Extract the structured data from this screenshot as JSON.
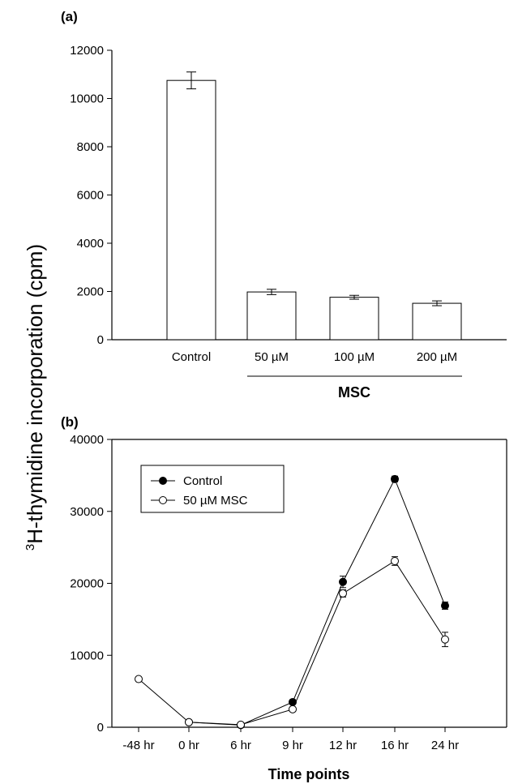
{
  "ylabel_main": "H-thymidine incorporation (cpm)",
  "ylabel_superscript": "3",
  "chart_data": [
    {
      "type": "bar",
      "panel_label": "(a)",
      "categories": [
        "Control",
        "50 µM",
        "100 µM",
        "200 µM"
      ],
      "values": [
        10750,
        1980,
        1760,
        1510
      ],
      "errors": [
        350,
        110,
        80,
        100
      ],
      "ylim": [
        0,
        12000
      ],
      "yticks": [
        0,
        2000,
        4000,
        6000,
        8000,
        10000,
        12000
      ],
      "group_label": "MSC",
      "bar_color": "#ffffff"
    },
    {
      "type": "line",
      "panel_label": "(b)",
      "x": [
        "-48 hr",
        "0 hr",
        "6 hr",
        "9 hr",
        "12 hr",
        "16 hr",
        "24 hr"
      ],
      "xlabel": "Time points",
      "ylim": [
        0,
        40000
      ],
      "yticks": [
        0,
        10000,
        20000,
        30000,
        40000
      ],
      "legend_position": "top-left",
      "series": [
        {
          "name": "Control",
          "marker": "filled",
          "values": [
            null,
            700,
            300,
            3500,
            20200,
            34500,
            16900
          ],
          "errors": [
            null,
            150,
            100,
            300,
            800,
            400,
            500
          ]
        },
        {
          "name": "50 µM MSC",
          "marker": "open",
          "values": [
            6700,
            700,
            350,
            2500,
            18600,
            23100,
            12200
          ],
          "errors": [
            200,
            150,
            100,
            300,
            500,
            600,
            1000
          ]
        }
      ]
    }
  ]
}
